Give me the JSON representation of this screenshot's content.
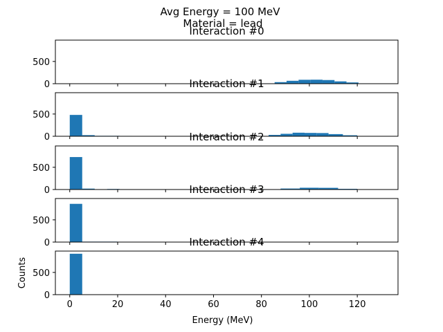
{
  "figure": {
    "suptitle_line1": "Avg Energy = 100 MeV",
    "suptitle_line2": "Material = lead"
  },
  "chart_data": [
    {
      "type": "bar",
      "title": "Interaction #0",
      "xlim": [
        -6,
        137
      ],
      "ylim": [
        0,
        980
      ],
      "yticks": [
        0,
        500
      ],
      "ylabel": "",
      "xlabel": "",
      "bins": [
        {
          "x0": 80.5,
          "x1": 85.5,
          "y": 8
        },
        {
          "x0": 85.5,
          "x1": 90.5,
          "y": 35
        },
        {
          "x0": 90.5,
          "x1": 95.5,
          "y": 65
        },
        {
          "x0": 95.5,
          "x1": 100.5,
          "y": 88
        },
        {
          "x0": 100.5,
          "x1": 105.5,
          "y": 90
        },
        {
          "x0": 105.5,
          "x1": 110.5,
          "y": 82
        },
        {
          "x0": 110.5,
          "x1": 115.5,
          "y": 52
        },
        {
          "x0": 115.5,
          "x1": 120.5,
          "y": 28
        },
        {
          "x0": 120.5,
          "x1": 125.5,
          "y": 8
        }
      ]
    },
    {
      "type": "bar",
      "title": "Interaction #1",
      "xlim": [
        -6,
        137
      ],
      "ylim": [
        0,
        980
      ],
      "yticks": [
        0,
        500
      ],
      "ylabel": "",
      "xlabel": "",
      "bins": [
        {
          "x0": 0,
          "x1": 5.2,
          "y": 480
        },
        {
          "x0": 5.2,
          "x1": 10.4,
          "y": 25
        },
        {
          "x0": 10.4,
          "x1": 15.6,
          "y": 10
        },
        {
          "x0": 15.6,
          "x1": 20.8,
          "y": 10
        },
        {
          "x0": 20.8,
          "x1": 26.0,
          "y": 8
        },
        {
          "x0": 26.0,
          "x1": 31.2,
          "y": 6
        },
        {
          "x0": 83,
          "x1": 88,
          "y": 30
        },
        {
          "x0": 88,
          "x1": 93,
          "y": 55
        },
        {
          "x0": 93,
          "x1": 98,
          "y": 80
        },
        {
          "x0": 98,
          "x1": 103,
          "y": 75
        },
        {
          "x0": 103,
          "x1": 108,
          "y": 72
        },
        {
          "x0": 108,
          "x1": 114,
          "y": 48
        },
        {
          "x0": 114,
          "x1": 120,
          "y": 22
        },
        {
          "x0": 120,
          "x1": 126,
          "y": 6
        }
      ]
    },
    {
      "type": "bar",
      "title": "Interaction #2",
      "xlim": [
        -6,
        137
      ],
      "ylim": [
        0,
        980
      ],
      "yticks": [
        0,
        500
      ],
      "ylabel": "",
      "xlabel": "",
      "bins": [
        {
          "x0": 0,
          "x1": 5.2,
          "y": 730
        },
        {
          "x0": 5.2,
          "x1": 10.4,
          "y": 20
        },
        {
          "x0": 15.6,
          "x1": 20.8,
          "y": 12
        },
        {
          "x0": 80,
          "x1": 88,
          "y": 8
        },
        {
          "x0": 88,
          "x1": 96,
          "y": 22
        },
        {
          "x0": 96,
          "x1": 104,
          "y": 40
        },
        {
          "x0": 104,
          "x1": 112,
          "y": 38
        },
        {
          "x0": 112,
          "x1": 120,
          "y": 15
        }
      ]
    },
    {
      "type": "bar",
      "title": "Interaction #3",
      "xlim": [
        -6,
        137
      ],
      "ylim": [
        0,
        980
      ],
      "yticks": [
        0,
        500
      ],
      "ylabel": "",
      "xlabel": "",
      "bins": [
        {
          "x0": 0,
          "x1": 5.2,
          "y": 860
        },
        {
          "x0": 5.2,
          "x1": 20,
          "y": 10
        },
        {
          "x0": 20,
          "x1": 35,
          "y": 8
        },
        {
          "x0": 80,
          "x1": 100,
          "y": 5
        },
        {
          "x0": 100,
          "x1": 124,
          "y": 5
        }
      ]
    },
    {
      "type": "bar",
      "title": "Interaction #4",
      "xlim": [
        -6,
        137
      ],
      "ylim": [
        0,
        980
      ],
      "yticks": [
        0,
        500
      ],
      "xticks": [
        0,
        20,
        40,
        60,
        80,
        100,
        120
      ],
      "ylabel": "Counts",
      "xlabel": "Energy (MeV)",
      "bins": [
        {
          "x0": 0,
          "x1": 5.2,
          "y": 920
        }
      ]
    }
  ],
  "colors": {
    "bar": "#1f77b4",
    "axis": "#000000"
  }
}
